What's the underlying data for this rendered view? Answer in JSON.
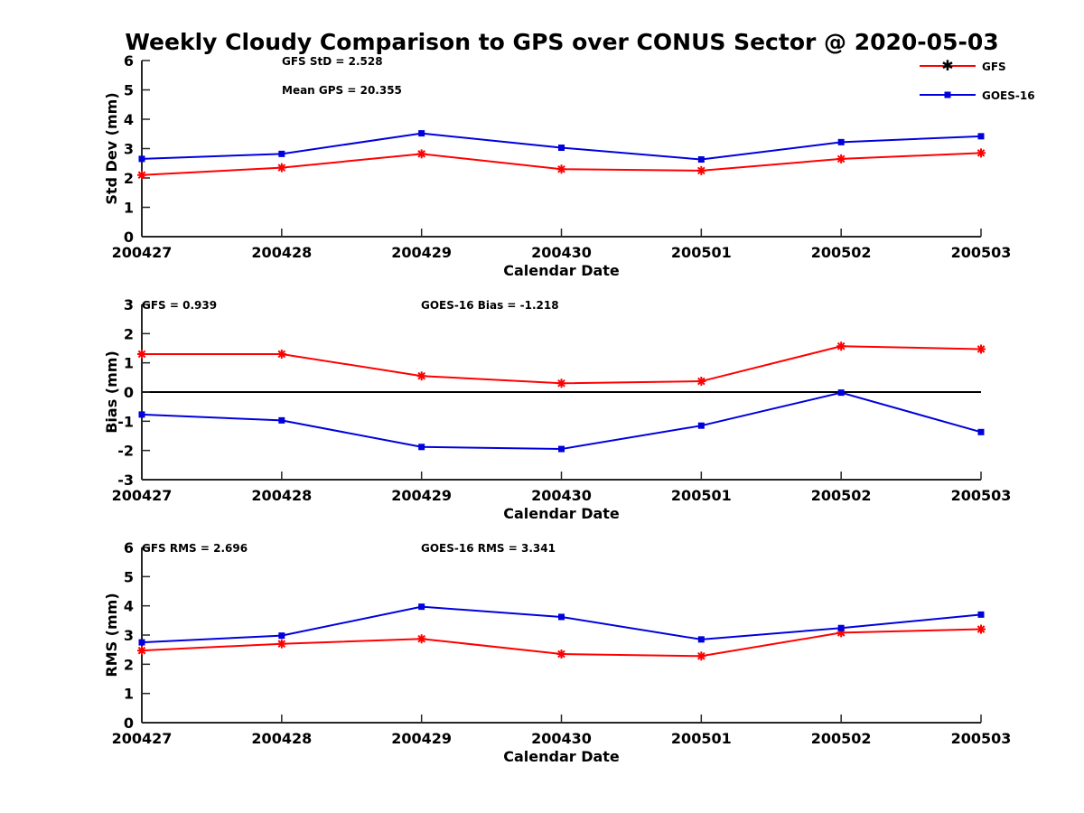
{
  "title": "Weekly Cloudy Comparison to GPS over CONUS Sector @ 2020-05-03",
  "colors": {
    "gfs": "#ff0000",
    "goes": "#0000dd",
    "axis": "#262626",
    "zero": "#000000"
  },
  "legend": {
    "placement": "top-right",
    "items": [
      {
        "label": "GFS",
        "marker": "asterisk",
        "color": "#ff0000"
      },
      {
        "label": "GOES-16",
        "marker": "square",
        "color": "#0000dd"
      }
    ]
  },
  "chart_data": [
    {
      "type": "line",
      "ylabel": "Std Dev (mm)",
      "xlabel": "Calendar Date",
      "categories": [
        "200427",
        "200428",
        "200429",
        "200430",
        "200501",
        "200502",
        "200503"
      ],
      "ylim": [
        0,
        6
      ],
      "yticks": [
        "0",
        "1",
        "2",
        "3",
        "4",
        "5",
        "6"
      ],
      "annotations": [
        "GFS StD = 2.528",
        "Mean GPS = 20.355"
      ],
      "series": [
        {
          "name": "GFS",
          "values": [
            2.1,
            2.35,
            2.82,
            2.3,
            2.25,
            2.65,
            2.85
          ]
        },
        {
          "name": "GOES-16",
          "values": [
            2.65,
            2.82,
            3.52,
            3.03,
            2.63,
            3.22,
            3.42
          ]
        }
      ]
    },
    {
      "type": "line",
      "ylabel": "Bias (mm)",
      "xlabel": "Calendar Date",
      "categories": [
        "200427",
        "200428",
        "200429",
        "200430",
        "200501",
        "200502",
        "200503"
      ],
      "ylim": [
        -3,
        3
      ],
      "yticks": [
        "-3",
        "-2",
        "-1",
        "0",
        "1",
        "2",
        "3"
      ],
      "zero_line": true,
      "annotations": [
        "GFS = 0.939",
        "GOES-16 Bias  = -1.218"
      ],
      "series": [
        {
          "name": "GFS",
          "values": [
            1.3,
            1.3,
            0.55,
            0.3,
            0.37,
            1.57,
            1.47
          ]
        },
        {
          "name": "GOES-16",
          "values": [
            -0.77,
            -0.97,
            -1.88,
            -1.95,
            -1.15,
            -0.02,
            -1.37
          ]
        }
      ]
    },
    {
      "type": "line",
      "ylabel": "RMS (mm)",
      "xlabel": "Calendar Date",
      "categories": [
        "200427",
        "200428",
        "200429",
        "200430",
        "200501",
        "200502",
        "200503"
      ],
      "ylim": [
        0,
        6
      ],
      "yticks": [
        "0",
        "1",
        "2",
        "3",
        "4",
        "5",
        "6"
      ],
      "annotations": [
        "GFS RMS = 2.696",
        "GOES-16 RMS = 3.341"
      ],
      "series": [
        {
          "name": "GFS",
          "values": [
            2.47,
            2.7,
            2.87,
            2.35,
            2.28,
            3.08,
            3.2
          ]
        },
        {
          "name": "GOES-16",
          "values": [
            2.75,
            2.98,
            3.97,
            3.62,
            2.85,
            3.24,
            3.7
          ]
        }
      ]
    }
  ]
}
